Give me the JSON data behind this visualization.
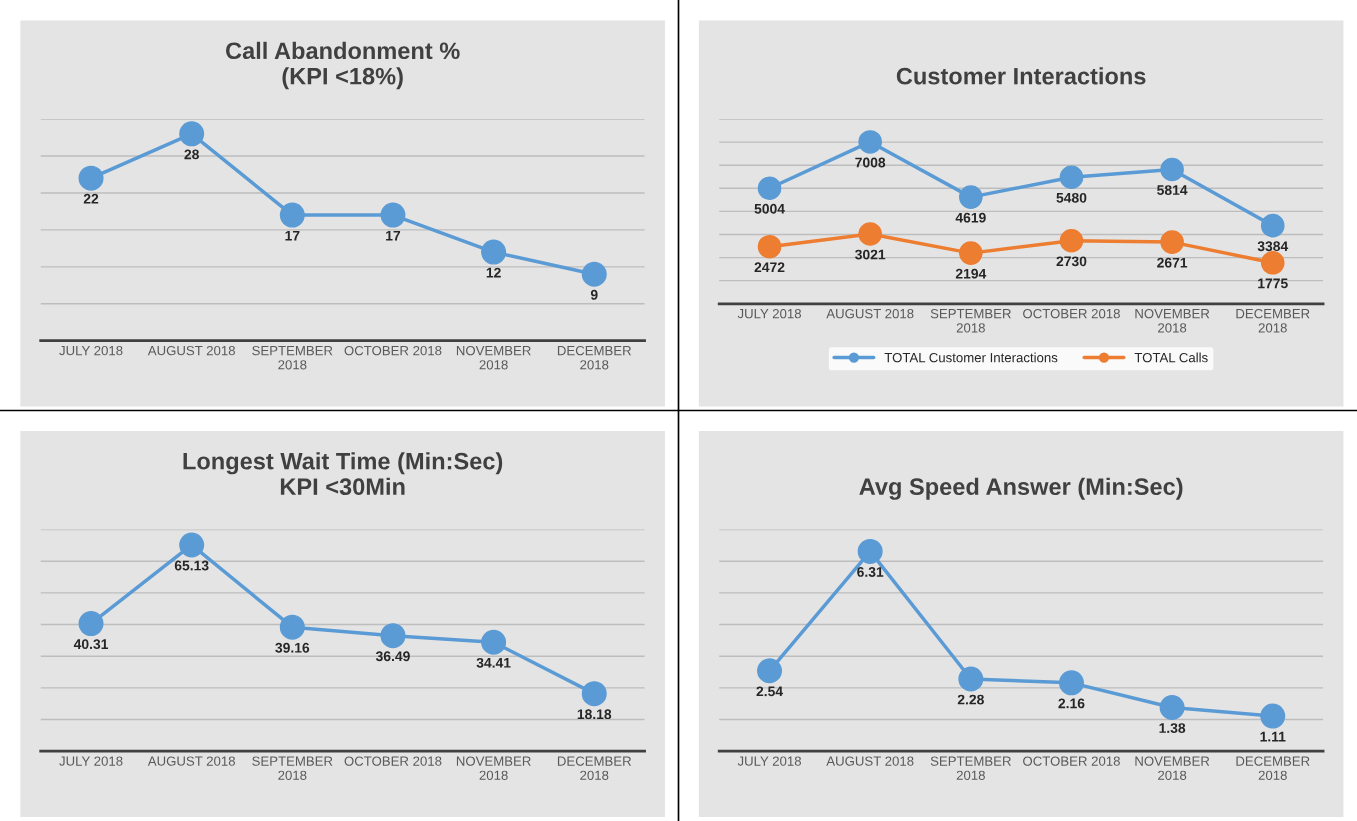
{
  "chart_data": [
    {
      "type": "line",
      "title": "Call Abandonment %\n(KPI <18%)",
      "categories": [
        "JULY 2018",
        "AUGUST 2018",
        "SEPTEMBER\n2018",
        "OCTOBER 2018",
        "NOVEMBER\n2018",
        "DECEMBER\n2018"
      ],
      "series": [
        {
          "color": "#5b9bd5",
          "values": [
            22,
            28,
            17,
            17,
            12,
            9
          ]
        }
      ],
      "ylim": [
        0,
        30
      ],
      "yticks": [
        {
          "value": 0,
          "label": null
        },
        {
          "value": 5,
          "label": null
        },
        {
          "value": 10,
          "label": null
        },
        {
          "value": 15,
          "label": null
        },
        {
          "value": 20,
          "label": null
        },
        {
          "value": 25,
          "label": null
        },
        {
          "value": 30,
          "label": null
        }
      ],
      "grid": "y",
      "tick_labels": "x",
      "marker": "circle",
      "line_style": "solid",
      "data_labels": true
    },
    {
      "type": "line",
      "title": "Customer Interactions",
      "categories": [
        "JULY 2018",
        "AUGUST 2018",
        "SEPTEMBER\n2018",
        "OCTOBER 2018",
        "NOVEMBER\n2018",
        "DECEMBER\n2018"
      ],
      "series": [
        {
          "name": "TOTAL Customer Interactions",
          "color": "#5b9bd5",
          "values": [
            5004,
            7008,
            4619,
            5480,
            5814,
            3384
          ]
        },
        {
          "name": "TOTAL Calls",
          "color": "#ed7d31",
          "values": [
            2472,
            3021,
            2194,
            2730,
            2671,
            1775
          ]
        }
      ],
      "ylim": [
        0,
        8000
      ],
      "yticks": [
        {
          "value": 0,
          "label": null
        },
        {
          "value": 1000,
          "label": null
        },
        {
          "value": 2000,
          "label": null
        },
        {
          "value": 3000,
          "label": null
        },
        {
          "value": 4000,
          "label": null
        },
        {
          "value": 5000,
          "label": null
        },
        {
          "value": 6000,
          "label": null
        },
        {
          "value": 7000,
          "label": null
        },
        {
          "value": 8000,
          "label": null
        }
      ],
      "grid": "y",
      "tick_labels": "x",
      "marker": "circle",
      "line_style": "solid",
      "data_labels": true,
      "legend": "bottom"
    },
    {
      "type": "line",
      "title": "Longest Wait Time (Min:Sec)\nKPI <30Min",
      "categories": [
        "JULY 2018",
        "AUGUST 2018",
        "SEPTEMBER\n2018",
        "OCTOBER 2018",
        "NOVEMBER\n2018",
        "DECEMBER\n2018"
      ],
      "series": [
        {
          "color": "#5b9bd5",
          "values": [
            40.31,
            65.13,
            39.16,
            36.49,
            34.41,
            18.18
          ]
        }
      ],
      "ylim": [
        0,
        70
      ],
      "yticks": [
        {
          "value": 0,
          "label": null
        },
        {
          "value": 10,
          "label": null
        },
        {
          "value": 20,
          "label": null
        },
        {
          "value": 30,
          "label": null
        },
        {
          "value": 40,
          "label": null
        },
        {
          "value": 50,
          "label": null
        },
        {
          "value": 60,
          "label": null
        },
        {
          "value": 70,
          "label": null
        }
      ],
      "grid": "y",
      "tick_labels": "x",
      "marker": "circle",
      "line_style": "solid",
      "data_labels": true
    },
    {
      "type": "line",
      "title": "Avg Speed Answer (Min:Sec)",
      "categories": [
        "JULY 2018",
        "AUGUST 2018",
        "SEPTEMBER\n2018",
        "OCTOBER 2018",
        "NOVEMBER\n2018",
        "DECEMBER\n2018"
      ],
      "series": [
        {
          "color": "#5b9bd5",
          "values": [
            2.54,
            6.31,
            2.28,
            2.16,
            1.38,
            1.11
          ]
        }
      ],
      "ylim": [
        0,
        7
      ],
      "yticks": [
        {
          "value": 0,
          "label": null
        },
        {
          "value": 1,
          "label": null
        },
        {
          "value": 2,
          "label": null
        },
        {
          "value": 3,
          "label": null
        },
        {
          "value": 4,
          "label": null
        },
        {
          "value": 5,
          "label": null
        },
        {
          "value": 6,
          "label": null
        },
        {
          "value": 7,
          "label": null
        }
      ],
      "grid": "y",
      "tick_labels": "x",
      "marker": "circle",
      "line_style": "solid",
      "data_labels": true
    }
  ]
}
